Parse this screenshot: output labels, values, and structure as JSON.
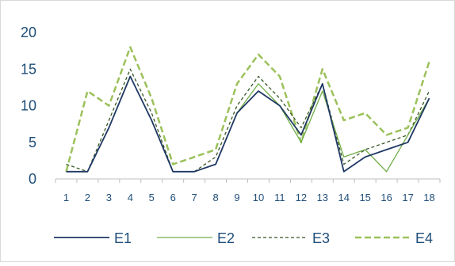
{
  "chart_data": {
    "type": "line",
    "title": "",
    "xlabel": "",
    "ylabel": "",
    "x": [
      "1",
      "2",
      "3",
      "4",
      "5",
      "6",
      "7",
      "8",
      "9",
      "10",
      "11",
      "12",
      "13",
      "14",
      "15",
      "16",
      "17",
      "18"
    ],
    "ylim": [
      0,
      20
    ],
    "yticks": [
      "0",
      "5",
      "10",
      "15",
      "20"
    ],
    "grid": false,
    "legend": "bottom",
    "series": [
      {
        "name": "E1",
        "color": "#1f3864",
        "dash": "solid",
        "values": [
          1,
          1,
          7,
          14,
          8,
          1,
          1,
          2,
          9,
          12,
          10,
          6,
          13,
          1,
          3,
          4,
          5,
          11
        ]
      },
      {
        "name": "E2",
        "color": "#70ad47",
        "dash": "solid",
        "values": [
          1,
          1,
          7,
          14,
          8,
          1,
          1,
          2,
          9,
          13,
          10,
          5,
          12,
          3,
          4,
          1,
          6,
          11
        ]
      },
      {
        "name": "E3",
        "color": "#375623",
        "dash": "short",
        "values": [
          2,
          1,
          8,
          15,
          9,
          1,
          1,
          3,
          10,
          14,
          11,
          7,
          13,
          2,
          4,
          5,
          6,
          12
        ]
      },
      {
        "name": "E4",
        "color": "#9bc15a",
        "dash": "long",
        "values": [
          1,
          12,
          10,
          18,
          11,
          2,
          3,
          4,
          13,
          17,
          14,
          5,
          15,
          8,
          9,
          6,
          7,
          16
        ]
      }
    ]
  }
}
